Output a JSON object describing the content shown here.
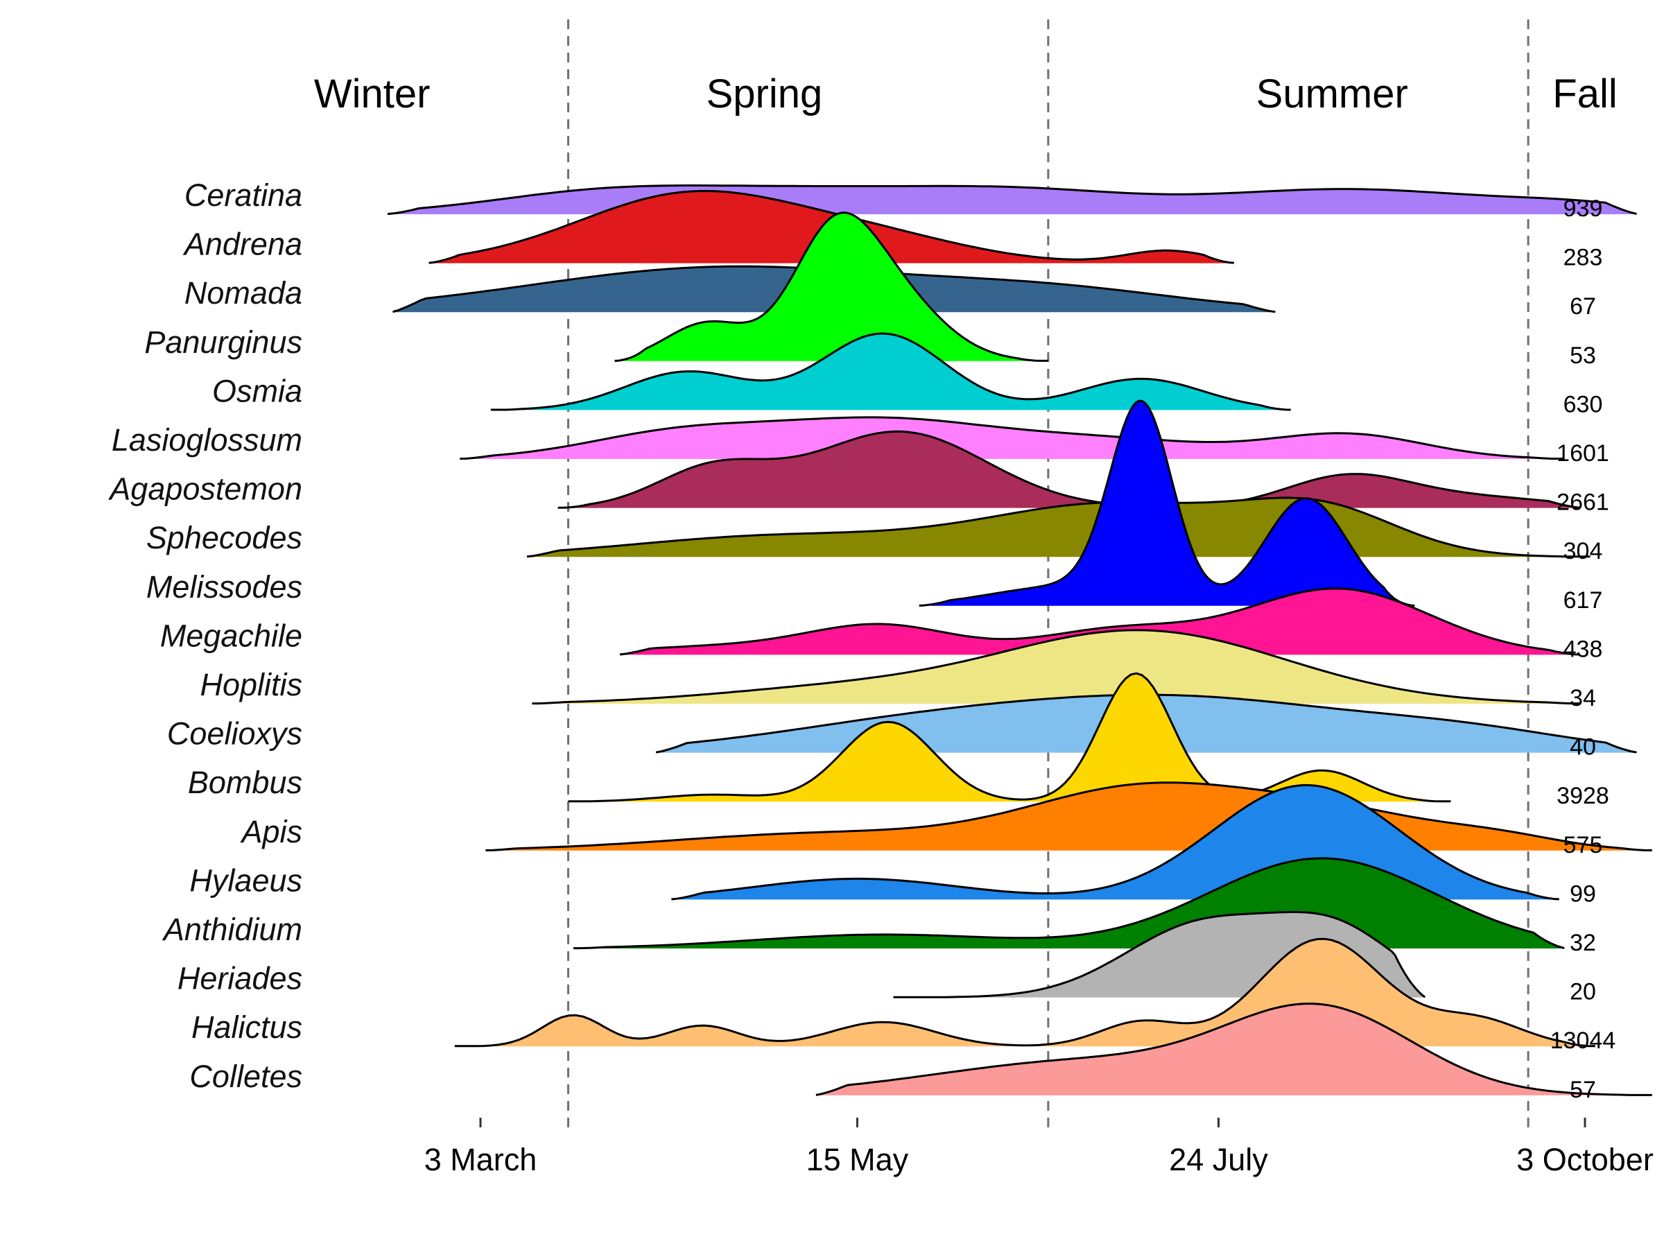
{
  "chart_data": {
    "type": "area",
    "subtype": "ridgeline-density",
    "seasons": [
      {
        "label": "Winter",
        "center_day": 41
      },
      {
        "label": "Spring",
        "center_day": 117
      },
      {
        "label": "Summer",
        "center_day": 227
      },
      {
        "label": "Fall",
        "center_day": 276
      }
    ],
    "season_boundaries_day": [
      79,
      172,
      265
    ],
    "x_ticks": [
      {
        "label": "3 March",
        "day": 62
      },
      {
        "label": "15 May",
        "day": 135
      },
      {
        "label": "24 July",
        "day": 205
      },
      {
        "label": "3 October",
        "day": 276
      }
    ],
    "xlim": [
      0,
      290
    ],
    "grid": false,
    "legend": "none",
    "series": [
      {
        "name": "Ceratina",
        "count": "939",
        "color": "#A97CF8",
        "range": [
          44,
          286
        ],
        "peaks": [
          [
            85,
            0.28,
            22
          ],
          [
            130,
            0.34,
            28
          ],
          [
            170,
            0.22,
            20
          ],
          [
            230,
            0.36,
            28
          ],
          [
            275,
            0.1,
            14
          ]
        ]
      },
      {
        "name": "Andrena",
        "count": "283",
        "color": "#E0191C",
        "range": [
          52,
          208
        ],
        "peaks": [
          [
            103,
            1.0,
            22
          ],
          [
            140,
            0.3,
            18
          ],
          [
            195,
            0.18,
            8
          ]
        ]
      },
      {
        "name": "Nomada",
        "count": "67",
        "color": "#35658E",
        "range": [
          45,
          216
        ],
        "peaks": [
          [
            110,
            0.65,
            38
          ],
          [
            175,
            0.25,
            25
          ]
        ]
      },
      {
        "name": "Panurginus",
        "count": "53",
        "color": "#00FF00",
        "range": [
          88,
          172
        ],
        "peaks": [
          [
            106,
            0.55,
            8
          ],
          [
            130,
            1.55,
            8
          ],
          [
            141,
            0.95,
            10
          ]
        ]
      },
      {
        "name": "Osmia",
        "count": "630",
        "color": "#00CED1",
        "range": [
          64,
          219
        ],
        "peaks": [
          [
            102,
            0.55,
            12
          ],
          [
            140,
            1.1,
            12
          ],
          [
            190,
            0.45,
            12
          ]
        ]
      },
      {
        "name": "Lasioglossum",
        "count": "1601",
        "color": "#FF80FF",
        "range": [
          58,
          272
        ],
        "peaks": [
          [
            100,
            0.35,
            18
          ],
          [
            140,
            0.55,
            22
          ],
          [
            185,
            0.25,
            20
          ],
          [
            230,
            0.35,
            15
          ]
        ]
      },
      {
        "name": "Agapostemon",
        "count": "2661",
        "color": "#AA2C5B",
        "range": [
          77,
          275
        ],
        "peaks": [
          [
            107,
            0.55,
            11
          ],
          [
            143,
            1.1,
            17
          ],
          [
            230,
            0.45,
            12
          ],
          [
            255,
            0.15,
            15
          ]
        ]
      },
      {
        "name": "Sphecodes",
        "count": "304",
        "color": "#878700",
        "range": [
          71,
          277
        ],
        "peaks": [
          [
            120,
            0.3,
            28
          ],
          [
            185,
            0.75,
            25
          ],
          [
            225,
            0.6,
            15
          ]
        ]
      },
      {
        "name": "Melissodes",
        "count": "617",
        "color": "#0000FF",
        "range": [
          147,
          243
        ],
        "peaks": [
          [
            175,
            0.28,
            14
          ],
          [
            190,
            2.8,
            6
          ],
          [
            222,
            1.55,
            8
          ]
        ]
      },
      {
        "name": "Megachile",
        "count": "438",
        "color": "#FF1493",
        "range": [
          89,
          275
        ],
        "peaks": [
          [
            110,
            0.12,
            20
          ],
          [
            140,
            0.4,
            14
          ],
          [
            185,
            0.35,
            15
          ],
          [
            228,
            0.95,
            18
          ]
        ]
      },
      {
        "name": "Hoplitis",
        "count": "34",
        "color": "#EEE685",
        "range": [
          72,
          275
        ],
        "peaks": [
          [
            190,
            1.05,
            28
          ],
          [
            130,
            0.2,
            25
          ]
        ]
      },
      {
        "name": "Coelioxys",
        "count": "40",
        "color": "#80BFEE",
        "range": [
          96,
          286
        ],
        "peaks": [
          [
            145,
            0.35,
            30
          ],
          [
            200,
            0.75,
            35
          ],
          [
            255,
            0.2,
            20
          ]
        ]
      },
      {
        "name": "Bombus",
        "count": "3928",
        "color": "#FFD700",
        "range": [
          79,
          250
        ],
        "peaks": [
          [
            107,
            0.1,
            10
          ],
          [
            141,
            1.15,
            9
          ],
          [
            189,
            1.85,
            7
          ],
          [
            225,
            0.45,
            8
          ]
        ]
      },
      {
        "name": "Apis",
        "count": "575",
        "color": "#FF8000",
        "range": [
          63,
          289
        ],
        "peaks": [
          [
            130,
            0.25,
            30
          ],
          [
            190,
            0.85,
            22
          ],
          [
            228,
            0.5,
            20
          ],
          [
            260,
            0.15,
            12
          ]
        ]
      },
      {
        "name": "Hylaeus",
        "count": "99",
        "color": "#1E85EA",
        "range": [
          99,
          271
        ],
        "peaks": [
          [
            135,
            0.3,
            20
          ],
          [
            222,
            1.65,
            18
          ]
        ]
      },
      {
        "name": "Anthidium",
        "count": "32",
        "color": "#008000",
        "range": [
          80,
          272
        ],
        "peaks": [
          [
            140,
            0.2,
            25
          ],
          [
            225,
            1.3,
            22
          ]
        ]
      },
      {
        "name": "Heriades",
        "count": "20",
        "color": "#B3B3B3",
        "range": [
          142,
          245
        ],
        "peaks": [
          [
            202,
            1.05,
            15
          ],
          [
            228,
            0.9,
            12
          ]
        ]
      },
      {
        "name": "Halictus",
        "count": "13044",
        "color": "#FFBF73",
        "range": [
          57,
          278
        ],
        "peaks": [
          [
            80,
            0.45,
            6
          ],
          [
            105,
            0.3,
            7
          ],
          [
            140,
            0.35,
            10
          ],
          [
            190,
            0.35,
            8
          ],
          [
            225,
            1.55,
            12
          ],
          [
            255,
            0.38,
            9
          ]
        ]
      },
      {
        "name": "Colletes",
        "count": "57",
        "color": "#FB9A99",
        "range": [
          127,
          289
        ],
        "peaks": [
          [
            180,
            0.5,
            30
          ],
          [
            225,
            1.15,
            18
          ]
        ]
      }
    ]
  }
}
